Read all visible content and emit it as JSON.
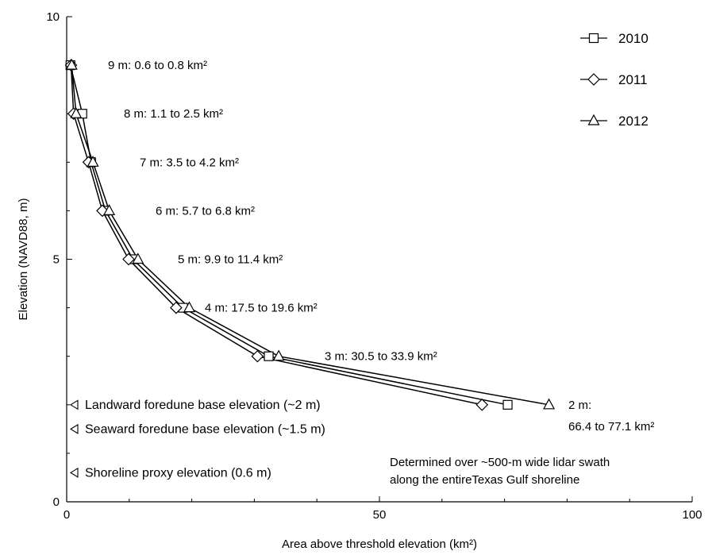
{
  "chart_data": {
    "type": "line",
    "xlabel": "Area above threshold elevation (km²)",
    "ylabel": "Elevation (NAVD88, m)",
    "xlim": [
      0,
      100
    ],
    "ylim": [
      0,
      10
    ],
    "x_ticks": [
      0,
      50,
      100
    ],
    "x_tick_labels": [
      "0",
      "50",
      "100"
    ],
    "y_ticks": [
      0,
      5,
      10
    ],
    "y_tick_labels": [
      "0",
      "5",
      "10"
    ],
    "grid": false,
    "legend_position": "top-right",
    "series": [
      {
        "name": "2010",
        "marker": "square",
        "x": [
          0.6,
          2.5,
          3.9,
          6.2,
          10.6,
          18.6,
          32.3,
          70.5
        ],
        "y": [
          9,
          8,
          7,
          6,
          5,
          4,
          3,
          2
        ]
      },
      {
        "name": "2011",
        "marker": "diamond",
        "x": [
          0.7,
          1.1,
          3.5,
          5.7,
          9.9,
          17.5,
          30.5,
          66.4
        ],
        "y": [
          9,
          8,
          7,
          6,
          5,
          4,
          3,
          2
        ]
      },
      {
        "name": "2012",
        "marker": "triangle",
        "x": [
          0.8,
          1.5,
          4.2,
          6.8,
          11.4,
          19.6,
          33.9,
          77.1
        ],
        "y": [
          9,
          8,
          7,
          6,
          5,
          4,
          3,
          2
        ]
      }
    ],
    "elevation_annotations": [
      {
        "text": "9 m: 0.6 to 0.8 km²",
        "y": 9
      },
      {
        "text": "8 m: 1.1 to 2.5 km²",
        "y": 8
      },
      {
        "text": "7 m: 3.5 to 4.2 km²",
        "y": 7
      },
      {
        "text": "6 m: 5.7 to 6.8 km²",
        "y": 6
      },
      {
        "text": "5 m: 9.9 to 11.4 km²",
        "y": 5
      },
      {
        "text": "4 m: 17.5 to 19.6 km²",
        "y": 4
      },
      {
        "text": "3 m: 30.5 to 33.9 km²",
        "y": 3
      },
      {
        "text_line1": "2 m:",
        "text_line2": "66.4 to 77.1 km²",
        "y": 2
      }
    ],
    "reference_elevations": [
      {
        "text": "Landward foredune base elevation (~2 m)",
        "y": 2
      },
      {
        "text": "Seaward foredune base elevation (~1.5 m)",
        "y": 1.5
      },
      {
        "text": "Shoreline proxy elevation (0.6 m)",
        "y": 0.6
      }
    ],
    "note": {
      "line1": "Determined over ~500-m wide lidar swath",
      "line2": "along the entireTexas Gulf shoreline"
    }
  }
}
